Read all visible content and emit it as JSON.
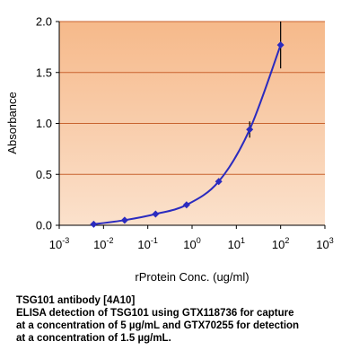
{
  "chart_data": {
    "type": "line",
    "title": "",
    "xlabel": "rProtein Conc. (ug/ml)",
    "ylabel": "Absorbance",
    "x_scale": "log",
    "xlim": [
      0.001,
      1000
    ],
    "ylim": [
      0,
      2.0
    ],
    "y_ticks": [
      "0.0",
      "0.5",
      "1.0",
      "1.5",
      "2.0"
    ],
    "x_ticks": [
      {
        "base": "10",
        "exp": "-3"
      },
      {
        "base": "10",
        "exp": "-2"
      },
      {
        "base": "10",
        "exp": "-1"
      },
      {
        "base": "10",
        "exp": "0"
      },
      {
        "base": "10",
        "exp": "1"
      },
      {
        "base": "10",
        "exp": "2"
      },
      {
        "base": "10",
        "exp": "3"
      }
    ],
    "grid": "horizontal",
    "series": [
      {
        "x": [
          0.006,
          0.03,
          0.15,
          0.75,
          4,
          20,
          100
        ],
        "y": [
          0.01,
          0.05,
          0.11,
          0.2,
          0.43,
          0.94,
          1.77
        ],
        "error": [
          0.01,
          0.01,
          0.01,
          0.02,
          0.03,
          0.08,
          0.23
        ]
      }
    ],
    "colors": {
      "line": "#2b2bbf",
      "marker": "#2b2bbf",
      "plot_background": "#f8c8a0",
      "gridline": "#c8622e",
      "error_bar": "#000000"
    }
  },
  "caption": {
    "line1": "TSG101 antibody [4A10]",
    "line2": "ELISA detection of TSG101 using GTX118736 for capture",
    "line3": "at a concentration of 5 µg/mL and GTX70255 for detection",
    "line4": "at a concentration of 1.5 µg/mL."
  }
}
